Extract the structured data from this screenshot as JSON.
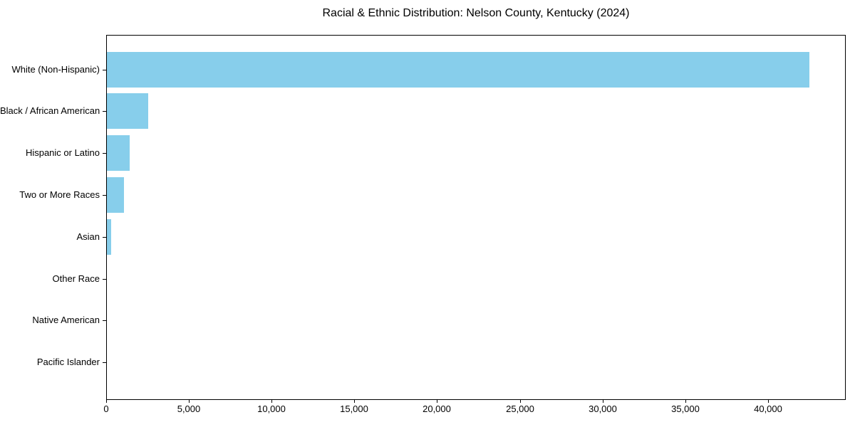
{
  "figure": {
    "background": "#ffffff"
  },
  "chart_data": {
    "type": "bar",
    "orientation": "horizontal",
    "title": "Racial & Ethnic Distribution: Nelson County, Kentucky (2024)",
    "xlabel": "",
    "ylabel": "",
    "categories": [
      "White (Non-Hispanic)",
      "Black / African American",
      "Hispanic or Latino",
      "Two or More Races",
      "Asian",
      "Other Race",
      "Native American",
      "Pacific Islander"
    ],
    "values": [
      42450,
      2480,
      1380,
      1050,
      260,
      0,
      0,
      0
    ],
    "xlim": [
      0,
      44700
    ],
    "x_ticks": [
      0,
      5000,
      10000,
      15000,
      20000,
      25000,
      30000,
      35000,
      40000
    ],
    "x_tick_labels": [
      "0",
      "5,000",
      "10,000",
      "15,000",
      "20,000",
      "25,000",
      "30,000",
      "35,000",
      "40,000"
    ],
    "bar_color": "#87ceeb",
    "frame_color": "#000000",
    "text_color": "#000000",
    "grid": false,
    "legend": false
  }
}
